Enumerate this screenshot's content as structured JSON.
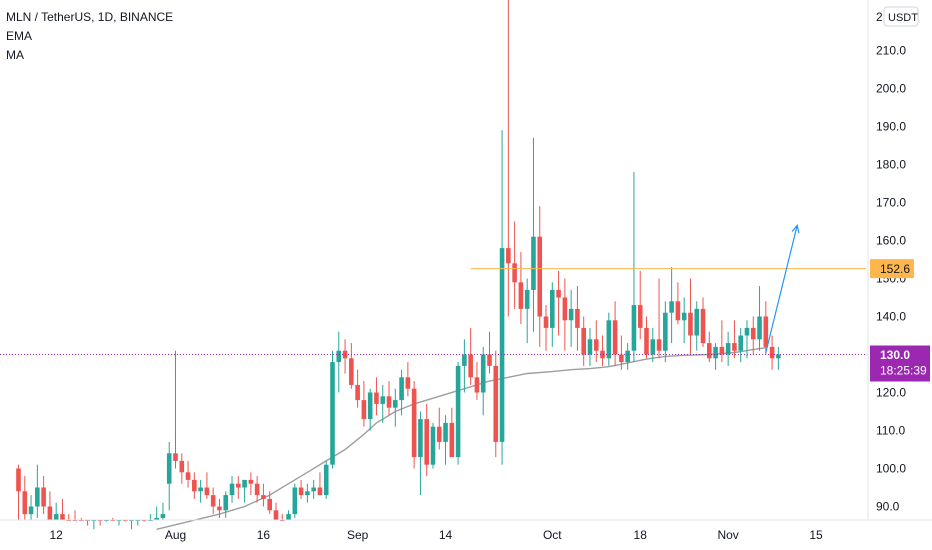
{
  "legend": {
    "symbol_line": "MLN / TetherUS, 1D, BINANCE",
    "indicator_1": "EMA",
    "indicator_2": "MA"
  },
  "currency_button": "USDT",
  "price_scale_top": "2",
  "chart_data": {
    "type": "candlestick",
    "ylim": [
      84,
      226
    ],
    "y_ticks": [
      90,
      100,
      110,
      120,
      130,
      140,
      150,
      160,
      170,
      180,
      190,
      200,
      210
    ],
    "y_tick_labels": [
      "90.0",
      "100.0",
      "110.0",
      "120.0",
      "130.0",
      "140.0",
      "150.0",
      "160.0",
      "170.0",
      "180.0",
      "190.0",
      "200.0",
      "210.0"
    ],
    "x_ticks": [
      {
        "label": "12",
        "index": 6
      },
      {
        "label": "Aug",
        "index": 25
      },
      {
        "label": "16",
        "index": 39
      },
      {
        "label": "Sep",
        "index": 54
      },
      {
        "label": "14",
        "index": 68
      },
      {
        "label": "Oct",
        "index": 85
      },
      {
        "label": "18",
        "index": 99
      },
      {
        "label": "Nov",
        "index": 113
      },
      {
        "label": "15",
        "index": 127
      }
    ],
    "candles": [
      [
        100,
        101,
        80,
        94
      ],
      [
        94,
        98,
        85,
        88
      ],
      [
        88,
        93,
        84,
        90
      ],
      [
        90,
        101,
        87,
        95
      ],
      [
        95,
        98,
        88,
        90
      ],
      [
        90,
        94,
        84,
        85
      ],
      [
        85,
        91,
        83,
        88
      ],
      [
        88,
        92,
        84,
        86
      ],
      [
        86,
        88,
        83,
        85
      ],
      [
        85,
        89,
        82,
        84
      ],
      [
        84,
        87,
        80,
        82
      ],
      [
        82,
        85,
        79,
        80
      ],
      [
        80,
        84,
        78,
        82
      ],
      [
        82,
        85,
        79,
        81
      ],
      [
        81,
        86,
        79,
        84
      ],
      [
        84,
        87,
        81,
        82
      ],
      [
        82,
        85,
        80,
        83
      ],
      [
        83,
        86,
        80,
        81
      ],
      [
        81,
        84,
        79,
        82
      ],
      [
        82,
        85,
        80,
        83
      ],
      [
        83,
        86,
        81,
        82
      ],
      [
        82,
        88,
        80,
        85
      ],
      [
        85,
        90,
        82,
        87
      ],
      [
        87,
        91,
        84,
        88
      ],
      [
        96,
        107,
        89,
        104
      ],
      [
        104,
        131,
        100,
        102
      ],
      [
        102,
        104,
        96,
        99
      ],
      [
        99,
        102,
        95,
        97
      ],
      [
        97,
        99,
        92,
        94
      ],
      [
        94,
        97,
        91,
        95
      ],
      [
        95,
        99,
        92,
        93
      ],
      [
        93,
        95,
        88,
        90
      ],
      [
        90,
        92,
        87,
        89
      ],
      [
        89,
        94,
        87,
        93
      ],
      [
        93,
        98,
        91,
        96
      ],
      [
        96,
        98,
        92,
        95
      ],
      [
        95,
        97,
        91,
        97
      ],
      [
        97,
        99,
        93,
        96
      ],
      [
        96,
        98,
        91,
        93
      ],
      [
        93,
        96,
        90,
        92
      ],
      [
        92,
        94,
        88,
        89
      ],
      [
        89,
        91,
        85,
        86
      ],
      [
        86,
        88,
        84,
        85
      ],
      [
        85,
        89,
        84,
        88
      ],
      [
        88,
        96,
        87,
        95
      ],
      [
        95,
        97,
        92,
        93
      ],
      [
        93,
        96,
        91,
        94
      ],
      [
        94,
        97,
        92,
        95
      ],
      [
        95,
        99,
        93,
        93
      ],
      [
        93,
        102,
        92,
        101
      ],
      [
        101,
        131,
        100,
        128
      ],
      [
        128,
        136,
        120,
        131
      ],
      [
        131,
        134,
        125,
        129
      ],
      [
        129,
        133,
        121,
        122
      ],
      [
        122,
        126,
        116,
        118
      ],
      [
        118,
        123,
        111,
        113
      ],
      [
        113,
        121,
        110,
        120
      ],
      [
        120,
        124,
        114,
        117
      ],
      [
        117,
        122,
        112,
        119
      ],
      [
        119,
        123,
        114,
        116
      ],
      [
        116,
        121,
        111,
        118
      ],
      [
        118,
        126,
        114,
        124
      ],
      [
        124,
        128,
        119,
        121
      ],
      [
        121,
        123,
        100,
        103
      ],
      [
        103,
        115,
        93,
        113
      ],
      [
        113,
        117,
        98,
        101
      ],
      [
        101,
        112,
        100,
        111
      ],
      [
        111,
        116,
        105,
        107
      ],
      [
        107,
        114,
        101,
        112
      ],
      [
        112,
        116,
        104,
        103
      ],
      [
        103,
        128,
        101,
        127
      ],
      [
        127,
        134,
        120,
        130
      ],
      [
        130,
        137,
        122,
        124
      ],
      [
        124,
        128,
        118,
        120
      ],
      [
        120,
        132,
        114,
        130
      ],
      [
        130,
        136,
        125,
        127
      ],
      [
        127,
        131,
        103,
        107
      ],
      [
        107,
        189,
        101,
        158
      ],
      [
        158,
        226,
        140,
        154
      ],
      [
        154,
        165,
        142,
        149
      ],
      [
        149,
        157,
        138,
        142
      ],
      [
        142,
        150,
        133,
        147
      ],
      [
        147,
        187,
        136,
        161
      ],
      [
        161,
        169,
        132,
        140
      ],
      [
        140,
        143,
        131,
        137
      ],
      [
        137,
        149,
        132,
        147
      ],
      [
        147,
        152,
        135,
        145
      ],
      [
        145,
        150,
        131,
        139
      ],
      [
        139,
        147,
        132,
        142
      ],
      [
        142,
        148,
        131,
        137
      ],
      [
        137,
        140,
        127,
        130
      ],
      [
        130,
        137,
        127,
        134
      ],
      [
        134,
        139,
        128,
        131
      ],
      [
        131,
        135,
        127,
        129
      ],
      [
        129,
        141,
        127,
        139
      ],
      [
        139,
        144,
        127,
        130
      ],
      [
        130,
        135,
        126,
        128
      ],
      [
        128,
        133,
        126,
        131
      ],
      [
        131,
        178,
        128,
        143
      ],
      [
        143,
        152,
        134,
        137
      ],
      [
        137,
        140,
        129,
        130
      ],
      [
        130,
        137,
        128,
        134
      ],
      [
        134,
        150,
        129,
        131
      ],
      [
        131,
        144,
        128,
        141
      ],
      [
        141,
        153,
        133,
        144
      ],
      [
        144,
        149,
        138,
        139
      ],
      [
        139,
        145,
        133,
        141
      ],
      [
        141,
        150,
        130,
        135
      ],
      [
        135,
        144,
        131,
        142
      ],
      [
        142,
        145,
        132,
        133
      ],
      [
        133,
        136,
        128,
        129
      ],
      [
        129,
        133,
        126,
        132
      ],
      [
        132,
        139,
        128,
        130
      ],
      [
        130,
        136,
        127,
        133
      ],
      [
        133,
        139,
        129,
        131
      ],
      [
        131,
        137,
        128,
        135
      ],
      [
        135,
        139,
        129,
        137
      ],
      [
        137,
        140,
        130,
        134
      ],
      [
        134,
        148,
        131,
        140
      ],
      [
        140,
        144,
        130,
        132
      ],
      [
        132,
        135,
        126,
        129
      ],
      [
        129,
        132,
        126,
        130
      ]
    ],
    "ma_line": [
      [
        22,
        84
      ],
      [
        27,
        86
      ],
      [
        32,
        88
      ],
      [
        36,
        90
      ],
      [
        40,
        93
      ],
      [
        43,
        96
      ],
      [
        46,
        99
      ],
      [
        49,
        102
      ],
      [
        52,
        105
      ],
      [
        55,
        109
      ],
      [
        57,
        112
      ],
      [
        60,
        115
      ],
      [
        63,
        117
      ],
      [
        67,
        119
      ],
      [
        71,
        121
      ],
      [
        75,
        123
      ],
      [
        78,
        124
      ],
      [
        81,
        125
      ],
      [
        85,
        125.5
      ],
      [
        88,
        126
      ],
      [
        91,
        126.3
      ],
      [
        94,
        126.8
      ],
      [
        97,
        127.8
      ],
      [
        100,
        128.8
      ],
      [
        103,
        129.5
      ],
      [
        106,
        129.8
      ],
      [
        110,
        130
      ],
      [
        114,
        130.5
      ],
      [
        117,
        131.3
      ],
      [
        119,
        131.8
      ]
    ],
    "resistance_level": 152.6,
    "current_price": 130.0,
    "projection_arrow": {
      "from": [
        119,
        130.5
      ],
      "to": [
        124,
        164
      ]
    },
    "colors": {
      "up": "#26a69a",
      "down": "#ef5350",
      "ma": "#9e9e9e",
      "resistance": "#ffb74d",
      "current": "#9c27b0",
      "arrow": "#2196f3"
    }
  },
  "labels": {
    "resistance_label": "152.6",
    "current_price_label": "130.0",
    "countdown_label": "18:25:39"
  }
}
